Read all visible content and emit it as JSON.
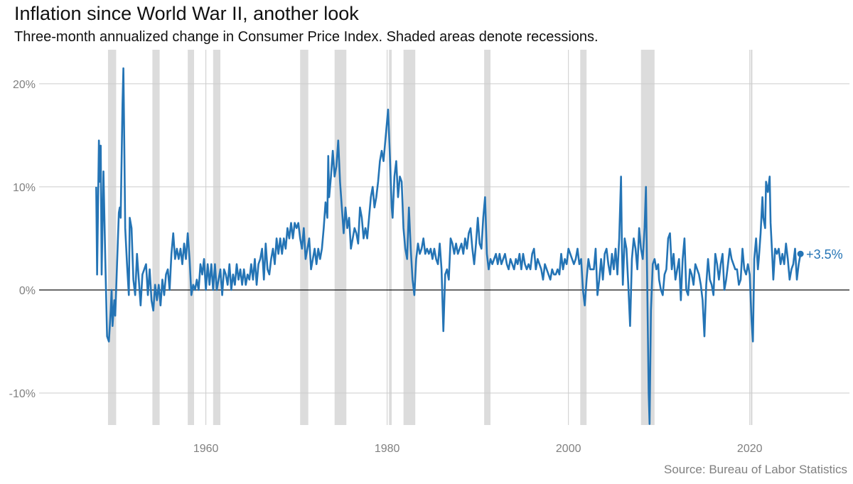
{
  "chart_data": {
    "type": "line",
    "title": "Inflation since World War II, another look",
    "subtitle": "Three-month annualized change in Consumer Price Index. Shaded areas denote recessions.",
    "source": "Source: Bureau of Labor Statistics",
    "end_label": "+3.5%",
    "color": "#2474b5",
    "recession_color": "#dcdcdc",
    "grid": true,
    "xlim": [
      1941.6,
      2031.0
    ],
    "ylim": [
      -13.1,
      23.3
    ],
    "xticks": [
      1960,
      1980,
      2000,
      2020
    ],
    "yticks": [
      {
        "value": -10,
        "label": "-10%"
      },
      {
        "value": 0,
        "label": "0%"
      },
      {
        "value": 10,
        "label": "10%"
      },
      {
        "value": 20,
        "label": "20%"
      }
    ],
    "recessions": [
      [
        1949.2,
        1950.1
      ],
      [
        1954.1,
        1954.9
      ],
      [
        1958.0,
        1958.7
      ],
      [
        1960.8,
        1961.6
      ],
      [
        1970.4,
        1971.3
      ],
      [
        1974.2,
        1975.5
      ],
      [
        1980.2,
        1980.5
      ],
      [
        1981.8,
        1983.1
      ],
      [
        1990.7,
        1991.4
      ],
      [
        2001.3,
        2002.0
      ],
      [
        2008.0,
        2009.5
      ],
      [
        2020.1,
        2020.3
      ]
    ],
    "x": [
      1947.9,
      1948.0,
      1948.2,
      1948.3,
      1948.4,
      1948.5,
      1948.7,
      1948.9,
      1949.1,
      1949.3,
      1949.5,
      1949.6,
      1949.7,
      1949.9,
      1950.0,
      1950.2,
      1950.4,
      1950.5,
      1950.6,
      1950.8,
      1950.9,
      1951.0,
      1951.1,
      1951.3,
      1951.5,
      1951.6,
      1951.8,
      1952.0,
      1952.2,
      1952.4,
      1952.6,
      1952.8,
      1953.0,
      1953.2,
      1953.4,
      1953.6,
      1953.8,
      1954.0,
      1954.2,
      1954.4,
      1954.6,
      1954.8,
      1955.0,
      1955.2,
      1955.4,
      1955.6,
      1955.8,
      1956.0,
      1956.2,
      1956.4,
      1956.6,
      1956.8,
      1957.0,
      1957.2,
      1957.4,
      1957.6,
      1957.8,
      1958.0,
      1958.2,
      1958.4,
      1958.6,
      1958.8,
      1959.0,
      1959.2,
      1959.4,
      1959.6,
      1959.8,
      1960.0,
      1960.2,
      1960.4,
      1960.6,
      1960.8,
      1961.0,
      1961.2,
      1961.4,
      1961.6,
      1961.8,
      1962.0,
      1962.2,
      1962.4,
      1962.6,
      1962.8,
      1963.0,
      1963.2,
      1963.4,
      1963.6,
      1963.8,
      1964.0,
      1964.2,
      1964.4,
      1964.6,
      1964.8,
      1965.0,
      1965.2,
      1965.4,
      1965.6,
      1965.8,
      1966.0,
      1966.2,
      1966.4,
      1966.6,
      1966.8,
      1967.0,
      1967.2,
      1967.4,
      1967.6,
      1967.8,
      1968.0,
      1968.2,
      1968.4,
      1968.6,
      1968.8,
      1969.0,
      1969.2,
      1969.4,
      1969.6,
      1969.8,
      1970.0,
      1970.2,
      1970.4,
      1970.6,
      1970.8,
      1971.0,
      1971.2,
      1971.4,
      1971.6,
      1971.8,
      1972.0,
      1972.2,
      1972.4,
      1972.6,
      1972.8,
      1973.0,
      1973.2,
      1973.4,
      1973.5,
      1973.6,
      1973.8,
      1974.0,
      1974.2,
      1974.4,
      1974.6,
      1974.8,
      1975.0,
      1975.2,
      1975.4,
      1975.6,
      1975.8,
      1976.0,
      1976.2,
      1976.4,
      1976.6,
      1976.8,
      1977.0,
      1977.2,
      1977.4,
      1977.6,
      1977.8,
      1978.0,
      1978.2,
      1978.4,
      1978.6,
      1978.8,
      1979.0,
      1979.2,
      1979.4,
      1979.6,
      1979.8,
      1980.0,
      1980.1,
      1980.3,
      1980.5,
      1980.6,
      1980.8,
      1981.0,
      1981.2,
      1981.4,
      1981.6,
      1981.8,
      1982.0,
      1982.2,
      1982.4,
      1982.6,
      1982.8,
      1983.0,
      1983.2,
      1983.4,
      1983.6,
      1983.8,
      1984.0,
      1984.2,
      1984.4,
      1984.6,
      1984.8,
      1985.0,
      1985.2,
      1985.4,
      1985.6,
      1985.8,
      1986.0,
      1986.2,
      1986.4,
      1986.6,
      1986.8,
      1987.0,
      1987.2,
      1987.4,
      1987.6,
      1987.8,
      1988.0,
      1988.2,
      1988.4,
      1988.6,
      1988.8,
      1989.0,
      1989.2,
      1989.4,
      1989.6,
      1989.8,
      1990.0,
      1990.2,
      1990.4,
      1990.6,
      1990.8,
      1991.0,
      1991.2,
      1991.4,
      1991.6,
      1991.8,
      1992.0,
      1992.2,
      1992.4,
      1992.6,
      1992.8,
      1993.0,
      1993.2,
      1993.4,
      1993.6,
      1993.8,
      1994.0,
      1994.2,
      1994.4,
      1994.6,
      1994.8,
      1995.0,
      1995.2,
      1995.4,
      1995.6,
      1995.8,
      1996.0,
      1996.2,
      1996.4,
      1996.6,
      1996.8,
      1997.0,
      1997.2,
      1997.4,
      1997.6,
      1997.8,
      1998.0,
      1998.2,
      1998.4,
      1998.6,
      1998.8,
      1999.0,
      1999.2,
      1999.4,
      1999.6,
      1999.8,
      2000.0,
      2000.2,
      2000.4,
      2000.6,
      2000.8,
      2001.0,
      2001.2,
      2001.4,
      2001.6,
      2001.8,
      2002.0,
      2002.2,
      2002.4,
      2002.6,
      2002.8,
      2003.0,
      2003.2,
      2003.4,
      2003.6,
      2003.8,
      2004.0,
      2004.2,
      2004.4,
      2004.6,
      2004.8,
      2005.0,
      2005.2,
      2005.4,
      2005.6,
      2005.8,
      2005.9,
      2006.0,
      2006.2,
      2006.4,
      2006.6,
      2006.8,
      2007.0,
      2007.2,
      2007.4,
      2007.6,
      2007.8,
      2008.0,
      2008.2,
      2008.4,
      2008.55,
      2008.7,
      2008.85,
      2008.95,
      2009.1,
      2009.3,
      2009.5,
      2009.7,
      2009.9,
      2010.0,
      2010.2,
      2010.4,
      2010.6,
      2010.8,
      2011.0,
      2011.2,
      2011.4,
      2011.6,
      2011.8,
      2012.0,
      2012.2,
      2012.4,
      2012.6,
      2012.8,
      2013.0,
      2013.2,
      2013.4,
      2013.6,
      2013.8,
      2014.0,
      2014.2,
      2014.4,
      2014.6,
      2014.8,
      2015.0,
      2015.2,
      2015.4,
      2015.6,
      2015.8,
      2016.0,
      2016.2,
      2016.4,
      2016.6,
      2016.8,
      2017.0,
      2017.2,
      2017.4,
      2017.6,
      2017.8,
      2018.0,
      2018.2,
      2018.4,
      2018.6,
      2018.8,
      2019.0,
      2019.2,
      2019.4,
      2019.6,
      2019.8,
      2020.0,
      2020.2,
      2020.35,
      2020.5,
      2020.7,
      2020.9,
      2021.0,
      2021.2,
      2021.4,
      2021.5,
      2021.7,
      2021.8,
      2022.0,
      2022.2,
      2022.3,
      2022.5,
      2022.6,
      2022.8,
      2023.0,
      2023.2,
      2023.4,
      2023.6,
      2023.8,
      2024.0,
      2024.2,
      2024.4,
      2024.6,
      2024.8,
      2025.0,
      2025.2,
      2025.4,
      2025.6
    ],
    "values": [
      10,
      1.5,
      14.5,
      10.5,
      14,
      1.5,
      11.5,
      3,
      -4.5,
      -5,
      -2,
      0,
      -3.5,
      -1,
      -2.5,
      2.5,
      7.5,
      8,
      7,
      18,
      21.5,
      14,
      6,
      2.5,
      -0.5,
      7,
      6,
      1,
      -0.5,
      3.5,
      1,
      -1.5,
      1.5,
      2,
      2.5,
      -0.5,
      2,
      -1,
      -2,
      0.5,
      -1,
      0.5,
      -1.5,
      1,
      -0.5,
      1.5,
      2,
      0,
      3.5,
      5.5,
      3,
      4,
      3,
      4,
      2.5,
      4.5,
      3,
      5.5,
      3,
      -0.5,
      0.5,
      0,
      1,
      0,
      2.5,
      1.5,
      3,
      0,
      2.5,
      0.5,
      2.5,
      0,
      2.5,
      0,
      1,
      2,
      -0.5,
      2,
      1.5,
      0.5,
      2.5,
      0,
      1.5,
      0.5,
      2.5,
      1,
      2,
      0.5,
      2,
      0.5,
      1.5,
      1,
      2.5,
      1,
      3,
      0.5,
      2.5,
      3,
      4,
      1,
      4.5,
      2,
      1.5,
      3,
      4,
      2.5,
      5,
      3.5,
      5,
      3.5,
      5,
      4,
      6,
      5,
      6.5,
      5,
      6.5,
      6,
      6.5,
      5,
      4,
      6,
      3,
      4,
      5,
      2,
      3,
      4,
      2.5,
      4,
      3,
      4,
      6,
      8.5,
      7,
      13,
      9,
      11,
      13.5,
      11,
      12,
      14.5,
      10.5,
      8,
      5.5,
      8,
      6,
      7,
      4,
      5,
      6,
      5.5,
      4.5,
      8,
      7,
      5,
      6,
      5,
      7,
      9,
      10,
      8,
      9,
      10.5,
      12.5,
      13.5,
      12.5,
      14.5,
      16.5,
      17.5,
      13,
      8,
      7,
      11,
      12.5,
      9,
      11,
      10.5,
      6,
      4,
      3,
      8,
      4,
      1,
      -0.5,
      3,
      4.5,
      3.5,
      4,
      5,
      3.5,
      4,
      3.5,
      4,
      3,
      4,
      3,
      2.5,
      4.5,
      2,
      -4,
      1.5,
      2,
      1,
      5,
      4.5,
      3.5,
      4.5,
      3.5,
      4,
      4.5,
      3.5,
      5,
      4,
      5.5,
      6,
      4,
      2.5,
      4.5,
      7,
      4.5,
      4,
      7,
      9,
      3.5,
      2,
      3,
      2.5,
      3,
      3.5,
      2.5,
      3.5,
      2.5,
      3,
      3.5,
      2.5,
      2,
      3,
      2.5,
      2,
      3,
      2.5,
      3.5,
      2,
      3.5,
      2.5,
      2,
      2.5,
      2,
      3.5,
      4,
      2,
      3,
      2.5,
      2,
      1,
      2.5,
      2,
      1.5,
      1,
      2,
      1.5,
      1.5,
      2,
      1.5,
      3.5,
      2,
      3,
      2.5,
      4,
      3.5,
      3,
      2.5,
      3,
      4,
      2.5,
      3,
      0,
      -1.5,
      1,
      3,
      2,
      2,
      2,
      4,
      -0.5,
      1,
      3,
      1,
      3.5,
      4,
      2.5,
      1.5,
      3.5,
      2,
      4,
      1.5,
      5,
      11,
      4,
      0.5,
      5,
      4,
      0.5,
      -3.5,
      3,
      5,
      4,
      2,
      6,
      4,
      3,
      6,
      10,
      0,
      -10,
      -13,
      -2,
      2.5,
      3,
      2,
      2.5,
      1,
      0,
      -0.5,
      1.5,
      2,
      5,
      5.5,
      2,
      3.5,
      1,
      2,
      3,
      -1,
      3,
      5,
      0,
      -0.5,
      2,
      1.5,
      0.5,
      2.5,
      2,
      1.5,
      0.5,
      -1,
      -4.5,
      0.5,
      3,
      1,
      0.5,
      -0.5,
      3.5,
      2.5,
      1,
      2.5,
      3.5,
      0,
      1,
      2.5,
      4,
      3,
      2.5,
      2,
      2,
      0.5,
      1,
      4,
      2,
      1.5,
      2.5,
      1.5,
      -3,
      -5,
      3,
      5,
      2,
      3,
      5.5,
      9,
      7,
      6,
      10.5,
      9.5,
      11,
      6.5,
      3,
      1,
      4,
      3.5,
      4,
      2.5,
      3.5,
      2.5,
      4.5,
      3,
      1,
      2,
      2.5,
      4,
      1,
      2.5,
      3.5
    ]
  }
}
